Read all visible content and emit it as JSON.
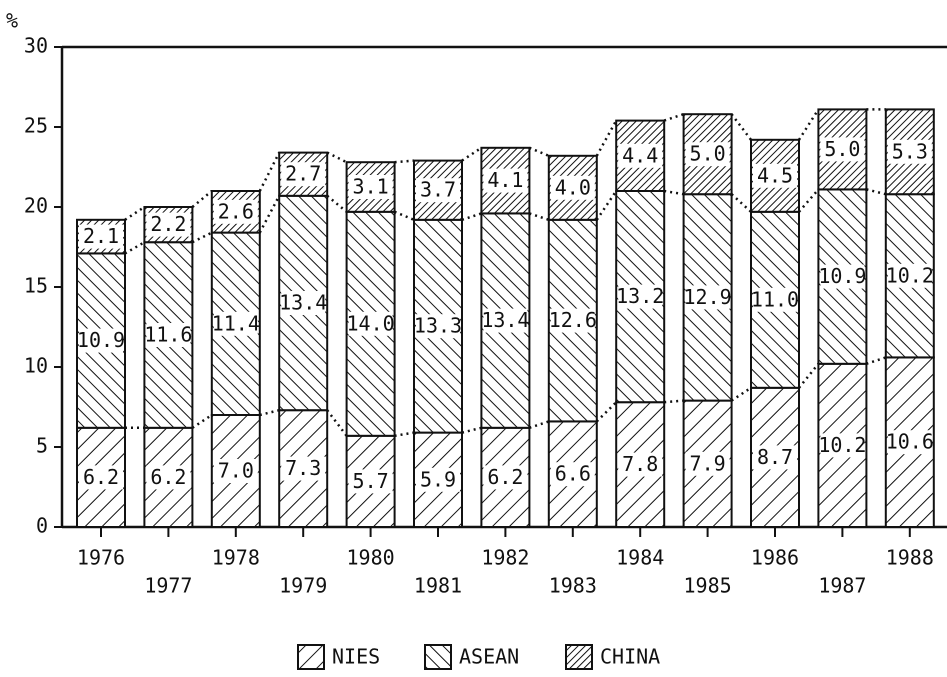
{
  "chart_data": {
    "type": "stacked_bar",
    "y_label": "%",
    "categories": [
      "1976",
      "1977",
      "1978",
      "1979",
      "1980",
      "1981",
      "1982",
      "1983",
      "1984",
      "1985",
      "1986",
      "1987",
      "1988"
    ],
    "series": [
      {
        "name": "NIES",
        "color": "#000000",
        "values": [
          6.2,
          6.2,
          7.0,
          7.3,
          5.7,
          5.9,
          6.2,
          6.6,
          7.8,
          7.9,
          8.7,
          10.2,
          10.6
        ],
        "value_labels": [
          "6.2",
          "6.2",
          "7.0",
          "7.3",
          "5.7",
          "5.9",
          "6.2",
          "6.6",
          "7.8",
          "7.9",
          "8.7",
          "10.2",
          "10.6"
        ]
      },
      {
        "name": "ASEAN",
        "color": "#000000",
        "values": [
          10.9,
          11.6,
          11.4,
          13.4,
          14.0,
          13.3,
          13.4,
          12.6,
          13.2,
          12.9,
          11.0,
          10.9,
          10.2
        ],
        "value_labels": [
          "10.9",
          "11.6",
          "11.4",
          "13.4",
          "14.0",
          "13.3",
          "13.4",
          "12.6",
          "13.2",
          "12.9",
          "11.0",
          "10.9",
          "10.2"
        ]
      },
      {
        "name": "CHINA",
        "color": "#000000",
        "values": [
          2.1,
          2.2,
          2.6,
          2.7,
          3.1,
          3.7,
          4.1,
          4.0,
          4.4,
          5.0,
          4.5,
          5.0,
          5.3
        ],
        "value_labels": [
          "2.1",
          "2.2",
          "2.6",
          "2.7",
          "3.1",
          "3.7",
          "4.1",
          "4.0",
          "4.4",
          "5.0",
          "4.5",
          "5.0",
          "5.3"
        ]
      }
    ],
    "ylim": [
      0,
      30
    ],
    "yticks": [
      0,
      5,
      10,
      15,
      20,
      25,
      30
    ],
    "legend": "bottom"
  }
}
